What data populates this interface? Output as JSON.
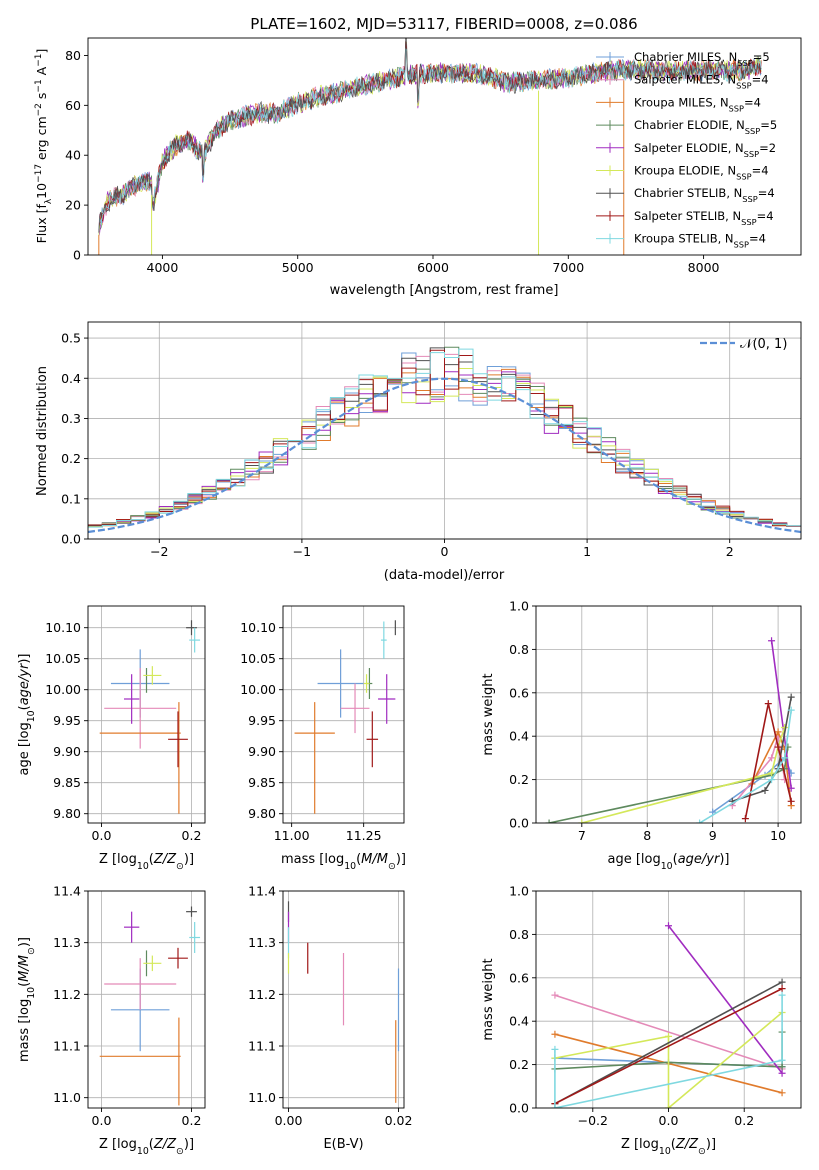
{
  "colors": {
    "Chabrier MILES": "#6f9fd8",
    "Salpeter MILES": "#e48ab8",
    "Kroupa MILES": "#e07b2c",
    "Chabrier ELODIE": "#5e8a5e",
    "Salpeter ELODIE": "#a02cc0",
    "Kroupa ELODIE": "#d4e85a",
    "Chabrier STELIB": "#505050",
    "Salpeter STELIB": "#a01818",
    "Kroupa STELIB": "#7fd8e0"
  },
  "chart_data": [
    {
      "type": "line",
      "title": "PLATE=1602, MJD=53117, FIBERID=0008, z=0.086",
      "xlabel": "wavelength [Angstrom, rest frame]",
      "ylabel": "Flux [f$_\\lambda 10^{-17}$ erg cm$^{-2}$ s$^{-1}$ A$^{-1}$]",
      "xlim": [
        3450,
        8720
      ],
      "ylim": [
        0,
        87
      ],
      "xticks": [
        "4000",
        "5000",
        "6000",
        "7000",
        "8000"
      ],
      "yticks": [
        "0",
        "20",
        "40",
        "60",
        "80"
      ],
      "legend": "upper-right",
      "series_names": [
        {
          "label": "Chabrier MILES, N",
          "sub": "SSP",
          "value": "=5"
        },
        {
          "label": "Salpeter MILES, N",
          "sub": "SSP",
          "value": "=4"
        },
        {
          "label": "Kroupa MILES, N",
          "sub": "SSP",
          "value": "=4"
        },
        {
          "label": "Chabrier ELODIE, N",
          "sub": "SSP",
          "value": "=5"
        },
        {
          "label": "Salpeter ELODIE, N",
          "sub": "SSP",
          "value": "=2"
        },
        {
          "label": "Kroupa ELODIE, N",
          "sub": "SSP",
          "value": "=4"
        },
        {
          "label": "Chabrier STELIB, N",
          "sub": "SSP",
          "value": "=4"
        },
        {
          "label": "Salpeter STELIB, N",
          "sub": "SSP",
          "value": "=4"
        },
        {
          "label": "Kroupa STELIB, N",
          "sub": "SSP",
          "value": "=4"
        }
      ],
      "spectrum_anchors": [
        [
          3530,
          12
        ],
        [
          3600,
          22
        ],
        [
          3700,
          24
        ],
        [
          3800,
          28
        ],
        [
          3900,
          30
        ],
        [
          3950,
          25
        ],
        [
          4000,
          38
        ],
        [
          4100,
          44
        ],
        [
          4200,
          46
        ],
        [
          4300,
          40
        ],
        [
          4400,
          50
        ],
        [
          4500,
          54
        ],
        [
          4700,
          57
        ],
        [
          4860,
          57
        ],
        [
          5000,
          61
        ],
        [
          5200,
          64
        ],
        [
          5500,
          68
        ],
        [
          5800,
          72
        ],
        [
          6000,
          73
        ],
        [
          6300,
          73
        ],
        [
          6560,
          69
        ],
        [
          6800,
          70
        ],
        [
          7000,
          71
        ],
        [
          7300,
          74
        ],
        [
          7600,
          74
        ],
        [
          8000,
          74
        ],
        [
          8300,
          74
        ],
        [
          8430,
          76
        ]
      ],
      "spikes": [
        [
          3530,
          0
        ],
        [
          3920,
          0
        ],
        [
          6780,
          0
        ],
        [
          7410,
          0
        ]
      ]
    },
    {
      "type": "line",
      "xlabel": "(data-model)/error",
      "ylabel": "Normed distribution",
      "xlim": [
        -2.5,
        2.5
      ],
      "ylim": [
        0,
        0.54
      ],
      "xticks": [
        "−2",
        "−1",
        "0",
        "1",
        "2"
      ],
      "yticks": [
        "0.0",
        "0.1",
        "0.2",
        "0.3",
        "0.4",
        "0.5"
      ],
      "legend_label": "𝒩(0, 1)",
      "legend_color": "#5b8fd6",
      "gaussian": {
        "mean": 0,
        "sigma": 1
      }
    },
    {
      "type": "scatter",
      "xlabel": "Z [log$_{10}$(Z/Z$_\\odot$)]",
      "ylabel": "age  [log$_{10}$(age/yr)]",
      "xlim": [
        -0.03,
        0.23
      ],
      "ylim": [
        9.785,
        10.135
      ],
      "xticks": [
        "0.0",
        "0.2"
      ],
      "xtick_values": [
        0,
        0.2
      ],
      "yticks": [
        "9.80",
        "9.85",
        "9.90",
        "9.95",
        "10.00",
        "10.05",
        "10.10"
      ],
      "points": [
        {
          "model": "Chabrier MILES",
          "x": 0.086,
          "xerr": 0.065,
          "y": 10.01,
          "yerr": 0.055
        },
        {
          "model": "Salpeter MILES",
          "x": 0.086,
          "xerr": 0.08,
          "y": 9.97,
          "yerr": 0.065
        },
        {
          "model": "Kroupa MILES",
          "x": 0.086,
          "xerr": 0.09,
          "y": 9.93,
          "yerr": 0.0
        },
        {
          "model": "Kroupa MILES",
          "x": 0.172,
          "xerr": 0.0,
          "y": 9.89,
          "yerr": 0.09
        },
        {
          "model": "Chabrier ELODIE",
          "x": 0.1,
          "xerr": 0.0,
          "y": 10.015,
          "yerr": 0.02
        },
        {
          "model": "Salpeter ELODIE",
          "x": 0.067,
          "xerr": 0.017,
          "y": 9.985,
          "yerr": 0.04
        },
        {
          "model": "Kroupa ELODIE",
          "x": 0.113,
          "xerr": 0.02,
          "y": 10.023,
          "yerr": 0.015
        },
        {
          "model": "Chabrier STELIB",
          "x": 0.2,
          "xerr": 0.012,
          "y": 10.1,
          "yerr": 0.012
        },
        {
          "model": "Salpeter STELIB",
          "x": 0.17,
          "xerr": 0.022,
          "y": 9.92,
          "yerr": 0.045
        },
        {
          "model": "Kroupa STELIB",
          "x": 0.207,
          "xerr": 0.012,
          "y": 10.08,
          "yerr": 0.02
        }
      ]
    },
    {
      "type": "scatter",
      "xlabel": "mass [log$_{10}$(M/M$_\\odot$)]",
      "xlim": [
        10.97,
        11.39
      ],
      "ylim": [
        9.785,
        10.135
      ],
      "xticks": [
        "11.00",
        "11.25"
      ],
      "xtick_values": [
        11.0,
        11.25
      ],
      "yticks": [
        "9.80",
        "9.85",
        "9.90",
        "9.95",
        "10.00",
        "10.05",
        "10.10"
      ],
      "points": [
        {
          "model": "Chabrier MILES",
          "x": 11.17,
          "xerr": 0.08,
          "y": 10.01,
          "yerr": 0.055
        },
        {
          "model": "Salpeter MILES",
          "x": 11.22,
          "xerr": 0.05,
          "y": 9.97,
          "yerr": 0.04
        },
        {
          "model": "Kroupa MILES",
          "x": 11.08,
          "xerr": 0.07,
          "y": 9.93,
          "yerr": 0.0
        },
        {
          "model": "Kroupa MILES",
          "x": 11.08,
          "xerr": 0.0,
          "y": 9.89,
          "yerr": 0.09
        },
        {
          "model": "Chabrier ELODIE",
          "x": 11.27,
          "xerr": 0.01,
          "y": 10.01,
          "yerr": 0.025
        },
        {
          "model": "Salpeter ELODIE",
          "x": 11.33,
          "xerr": 0.03,
          "y": 9.985,
          "yerr": 0.04
        },
        {
          "model": "Kroupa ELODIE",
          "x": 11.26,
          "xerr": 0.01,
          "y": 10.01,
          "yerr": 0.015
        },
        {
          "model": "Chabrier STELIB",
          "x": 11.36,
          "xerr": 0.0,
          "y": 10.1,
          "yerr": 0.012
        },
        {
          "model": "Salpeter STELIB",
          "x": 11.28,
          "xerr": 0.02,
          "y": 9.92,
          "yerr": 0.045
        },
        {
          "model": "Kroupa STELIB",
          "x": 11.32,
          "xerr": 0.01,
          "y": 10.08,
          "yerr": 0.03
        }
      ]
    },
    {
      "type": "line",
      "xlabel": "age  [log$_{10}$(age/yr)]",
      "ylabel": "mass weight",
      "xlim": [
        6.3,
        10.35
      ],
      "ylim": [
        0,
        1.0
      ],
      "xticks": [
        "7",
        "8",
        "9",
        "10"
      ],
      "xtick_values": [
        7,
        8,
        9,
        10
      ],
      "yticks": [
        "0.0",
        "0.2",
        "0.4",
        "0.6",
        "0.8",
        "1.0"
      ],
      "lines": [
        {
          "model": "Chabrier MILES",
          "x": [
            9.0,
            9.8,
            10.1,
            10.2
          ],
          "y": [
            0.05,
            0.22,
            0.3,
            0.23
          ]
        },
        {
          "model": "Salpeter MILES",
          "x": [
            9.3,
            9.9,
            10.0,
            10.1
          ],
          "y": [
            0.08,
            0.3,
            0.4,
            0.2
          ]
        },
        {
          "model": "Kroupa MILES",
          "x": [
            9.6,
            10.0,
            10.1,
            10.2
          ],
          "y": [
            0.18,
            0.42,
            0.34,
            0.08
          ]
        },
        {
          "model": "Chabrier ELODIE",
          "x": [
            6.5,
            9.9,
            10.1,
            10.15
          ],
          "y": [
            0.0,
            0.22,
            0.25,
            0.35
          ]
        },
        {
          "model": "Salpeter ELODIE",
          "x": [
            9.9,
            10.2
          ],
          "y": [
            0.84,
            0.16
          ]
        },
        {
          "model": "Kroupa ELODIE",
          "x": [
            7.0,
            9.9,
            10.0,
            10.1
          ],
          "y": [
            0.0,
            0.23,
            0.35,
            0.44
          ]
        },
        {
          "model": "Chabrier STELIB",
          "x": [
            9.3,
            9.8,
            10.0,
            10.2
          ],
          "y": [
            0.1,
            0.15,
            0.25,
            0.58
          ]
        },
        {
          "model": "Salpeter STELIB",
          "x": [
            9.5,
            9.85,
            10.0,
            10.2
          ],
          "y": [
            0.02,
            0.55,
            0.35,
            0.1
          ]
        },
        {
          "model": "Kroupa STELIB",
          "x": [
            8.8,
            9.9,
            10.1,
            10.2
          ],
          "y": [
            0.0,
            0.2,
            0.3,
            0.52
          ]
        }
      ]
    },
    {
      "type": "scatter",
      "xlabel": "Z [log$_{10}$(Z/Z$_\\odot$)]",
      "ylabel": "mass [log$_{10}$(M/M$_\\odot$)]",
      "xlim": [
        -0.03,
        0.23
      ],
      "ylim": [
        10.98,
        11.4
      ],
      "xticks": [
        "0.0",
        "0.2"
      ],
      "xtick_values": [
        0,
        0.2
      ],
      "yticks": [
        "11.0",
        "11.1",
        "11.2",
        "11.3",
        "11.4"
      ],
      "points": [
        {
          "model": "Chabrier MILES",
          "x": 0.086,
          "xerr": 0.065,
          "y": 11.17,
          "yerr": 0.08
        },
        {
          "model": "Salpeter MILES",
          "x": 0.086,
          "xerr": 0.08,
          "y": 11.22,
          "yerr": 0.05
        },
        {
          "model": "Kroupa MILES",
          "x": 0.086,
          "xerr": 0.09,
          "y": 11.08,
          "yerr": 0.0
        },
        {
          "model": "Kroupa MILES",
          "x": 0.172,
          "xerr": 0.0,
          "y": 11.07,
          "yerr": 0.085
        },
        {
          "model": "Chabrier ELODIE",
          "x": 0.1,
          "xerr": 0.0,
          "y": 11.26,
          "yerr": 0.025
        },
        {
          "model": "Salpeter ELODIE",
          "x": 0.067,
          "xerr": 0.017,
          "y": 11.33,
          "yerr": 0.03
        },
        {
          "model": "Kroupa ELODIE",
          "x": 0.113,
          "xerr": 0.02,
          "y": 11.26,
          "yerr": 0.015
        },
        {
          "model": "Chabrier STELIB",
          "x": 0.2,
          "xerr": 0.012,
          "y": 11.36,
          "yerr": 0.01
        },
        {
          "model": "Salpeter STELIB",
          "x": 0.17,
          "xerr": 0.022,
          "y": 11.27,
          "yerr": 0.02
        },
        {
          "model": "Kroupa STELIB",
          "x": 0.207,
          "xerr": 0.012,
          "y": 11.31,
          "yerr": 0.03
        }
      ]
    },
    {
      "type": "scatter",
      "xlabel": "E(B-V)",
      "xlim": [
        -0.001,
        0.021
      ],
      "ylim": [
        10.98,
        11.4
      ],
      "xticks": [
        "0.00",
        "0.02"
      ],
      "xtick_values": [
        0,
        0.02
      ],
      "yticks": [
        "11.0",
        "11.1",
        "11.2",
        "11.3",
        "11.4"
      ],
      "points": [
        {
          "model": "Chabrier STELIB",
          "x": 0.0,
          "xerr": 0.0,
          "y": 11.36,
          "yerr": 0.02
        },
        {
          "model": "Salpeter ELODIE",
          "x": 0.0,
          "xerr": 0.0,
          "y": 11.33,
          "yerr": 0.03
        },
        {
          "model": "Kroupa STELIB",
          "x": 0.0,
          "xerr": 0.0,
          "y": 11.3,
          "yerr": 0.03
        },
        {
          "model": "Kroupa ELODIE",
          "x": 0.0,
          "xerr": 0.0,
          "y": 11.26,
          "yerr": 0.02
        },
        {
          "model": "Salpeter STELIB",
          "x": 0.0035,
          "xerr": 0.0,
          "y": 11.27,
          "yerr": 0.03
        },
        {
          "model": "Salpeter MILES",
          "x": 0.01,
          "xerr": 0.0,
          "y": 11.21,
          "yerr": 0.07
        },
        {
          "model": "Chabrier MILES",
          "x": 0.02,
          "xerr": 0.0,
          "y": 11.17,
          "yerr": 0.08
        },
        {
          "model": "Kroupa MILES",
          "x": 0.0195,
          "xerr": 0.0,
          "y": 11.07,
          "yerr": 0.08
        }
      ]
    },
    {
      "type": "line",
      "xlabel": "Z [log$_{10}$(Z/Z$_\\odot$)]",
      "ylabel": "mass weight",
      "xlim": [
        -0.35,
        0.35
      ],
      "ylim": [
        0,
        1.0
      ],
      "xticks": [
        "−0.2",
        "0.0",
        "0.2"
      ],
      "xtick_values": [
        -0.2,
        0,
        0.2
      ],
      "yticks": [
        "0.0",
        "0.2",
        "0.4",
        "0.6",
        "0.8",
        "1.0"
      ],
      "lines": [
        {
          "model": "Chabrier MILES",
          "x": [
            -0.3,
            0.3
          ],
          "y": [
            0.23,
            0.19
          ]
        },
        {
          "model": "Salpeter MILES",
          "x": [
            -0.3,
            0.3
          ],
          "y": [
            0.52,
            0.18
          ]
        },
        {
          "model": "Kroupa MILES",
          "x": [
            -0.3,
            0.3
          ],
          "y": [
            0.34,
            0.07
          ]
        },
        {
          "model": "Chabrier ELODIE",
          "x": [
            -0.3,
            0.0,
            0.3,
            0.3
          ],
          "y": [
            0.18,
            0.21,
            0.19,
            0.35
          ]
        },
        {
          "model": "Salpeter ELODIE",
          "x": [
            0.0,
            0.3
          ],
          "y": [
            0.84,
            0.16
          ]
        },
        {
          "model": "Kroupa ELODIE",
          "x": [
            -0.3,
            0.0,
            0.0,
            0.3
          ],
          "y": [
            0.23,
            0.33,
            0.0,
            0.44
          ]
        },
        {
          "model": "Chabrier STELIB",
          "x": [
            -0.3,
            0.3
          ],
          "y": [
            0.02,
            0.58
          ]
        },
        {
          "model": "Salpeter STELIB",
          "x": [
            -0.3,
            0.3
          ],
          "y": [
            0.02,
            0.55
          ]
        },
        {
          "model": "Kroupa STELIB",
          "x": [
            -0.3,
            -0.3,
            0.3,
            0.3
          ],
          "y": [
            0.27,
            0.0,
            0.22,
            0.52
          ]
        }
      ]
    }
  ]
}
